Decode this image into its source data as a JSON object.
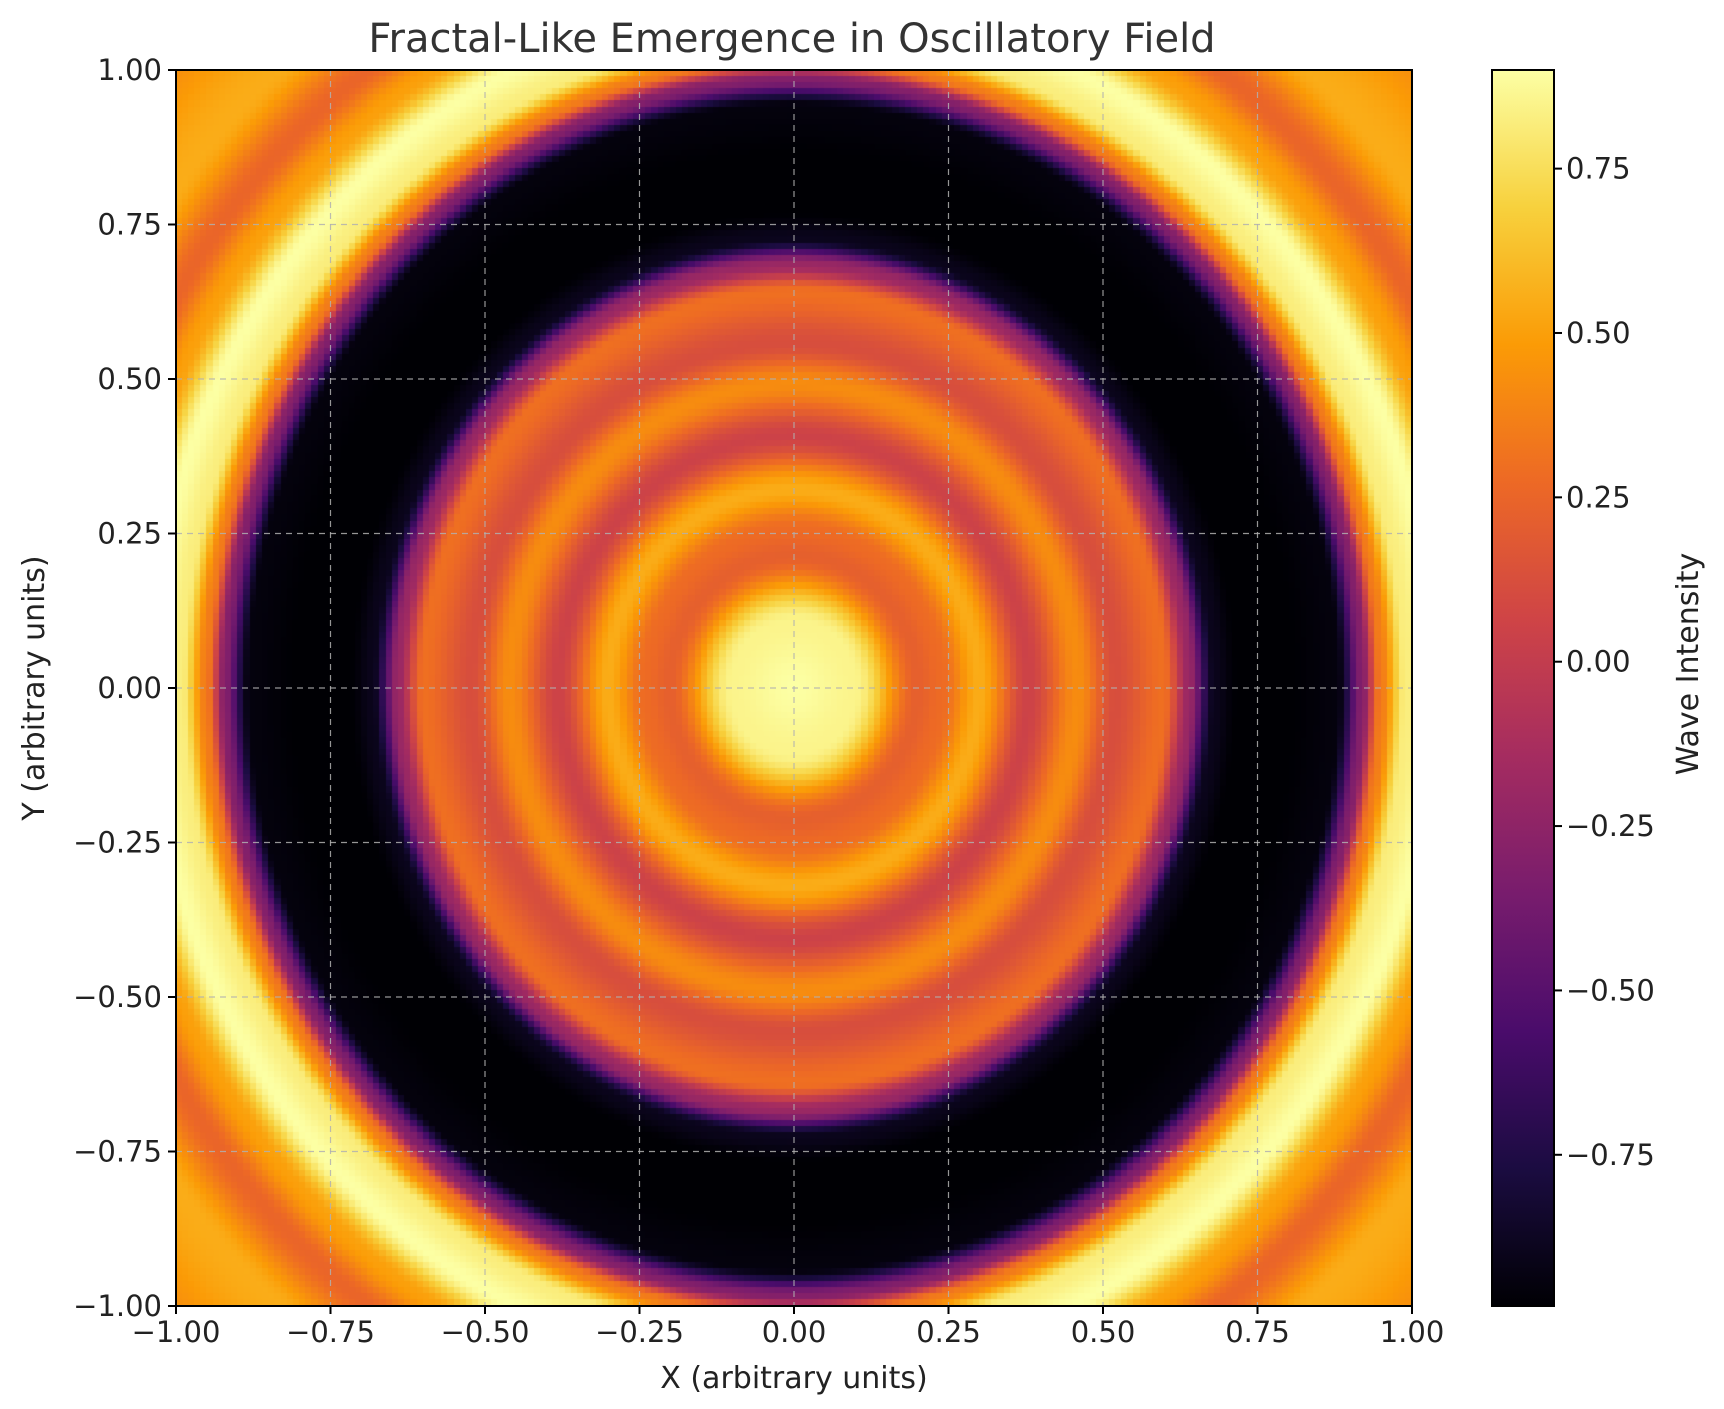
{
  "chart_data": {
    "type": "heatmap",
    "title": "Fractal-Like Emergence in Oscillatory Field",
    "xlabel": "X (arbitrary units)",
    "ylabel": "Y (arbitrary units)",
    "xlim": [
      -1.0,
      1.0
    ],
    "ylim": [
      -1.0,
      1.0
    ],
    "x_ticks": [
      "−1.00",
      "−0.75",
      "−0.50",
      "−0.25",
      "0.00",
      "0.25",
      "0.50",
      "0.75",
      "1.00"
    ],
    "y_ticks": [
      "1.00",
      "0.75",
      "0.50",
      "0.25",
      "0.00",
      "−0.25",
      "−0.50",
      "−0.75",
      "−1.00"
    ],
    "x_tick_values": [
      -1.0,
      -0.75,
      -0.5,
      -0.25,
      0.0,
      0.25,
      0.5,
      0.75,
      1.0
    ],
    "y_tick_values": [
      1.0,
      0.75,
      0.5,
      0.25,
      0.0,
      -0.25,
      -0.5,
      -0.75,
      -1.0
    ],
    "colormap": "inferno",
    "colorbar": {
      "label": "Wave Intensity",
      "range": [
        -0.98,
        0.9
      ],
      "ticks": [
        "0.75",
        "0.50",
        "0.25",
        "0.00",
        "−0.25",
        "−0.50",
        "−0.75"
      ],
      "tick_values": [
        0.75,
        0.5,
        0.25,
        0.0,
        -0.25,
        -0.5,
        -0.75
      ]
    },
    "grid": true,
    "radial_profile": {
      "r": [
        0.0,
        0.1,
        0.2,
        0.24,
        0.3,
        0.38,
        0.46,
        0.52,
        0.6,
        0.64,
        0.68,
        0.72,
        0.8,
        0.88,
        0.92,
        0.95,
        0.99,
        1.04,
        1.1,
        1.16,
        1.25,
        1.42
      ],
      "intensity": [
        0.9,
        0.85,
        0.22,
        0.28,
        0.55,
        0.05,
        0.42,
        0.12,
        0.3,
        -0.2,
        -0.9,
        -0.98,
        -0.98,
        -0.95,
        -0.3,
        0.35,
        0.82,
        0.9,
        0.5,
        0.25,
        0.55,
        0.4
      ]
    },
    "ellipse_axes": {
      "x_scale": 1.0,
      "y_scale": 1.07
    }
  },
  "colors": {
    "colormap_stops": [
      "#000004",
      "#1b0c41",
      "#4a0c6b",
      "#781c6d",
      "#a52c60",
      "#cf4446",
      "#ed6925",
      "#fb9b06",
      "#f7d13d",
      "#fcffa4"
    ],
    "axis": "#000000",
    "grid": "#b0b0b0",
    "title": "#333333"
  }
}
